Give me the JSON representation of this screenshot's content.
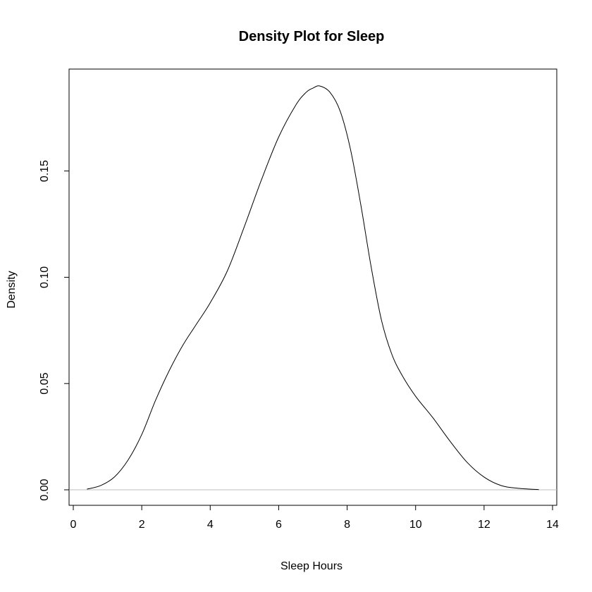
{
  "chart_data": {
    "type": "line",
    "title": "Density Plot for Sleep",
    "xlabel": "Sleep Hours",
    "ylabel": "Density",
    "xlim": [
      0,
      14
    ],
    "ylim": [
      0,
      0.19
    ],
    "x_ticks": [
      0,
      2,
      4,
      6,
      8,
      10,
      12,
      14
    ],
    "x_tick_labels": [
      "0",
      "2",
      "4",
      "6",
      "8",
      "10",
      "12",
      "14"
    ],
    "y_ticks": [
      0,
      0.05,
      0.1,
      0.15
    ],
    "y_tick_labels": [
      "0.00",
      "0.05",
      "0.10",
      "0.15"
    ],
    "baseline": 0,
    "baseline_color": "#bebebe",
    "line_color": "#000000",
    "grid": false,
    "series": [
      {
        "x": [
          0.4,
          0.8,
          1.2,
          1.6,
          2.0,
          2.4,
          2.8,
          3.2,
          3.6,
          4.0,
          4.5,
          5.0,
          5.5,
          6.0,
          6.5,
          6.8,
          7.0,
          7.2,
          7.5,
          7.8,
          8.1,
          8.4,
          8.7,
          9.0,
          9.3,
          9.6,
          10.0,
          10.5,
          11.0,
          11.5,
          12.0,
          12.5,
          13.0,
          13.6
        ],
        "y": [
          0.0003,
          0.002,
          0.006,
          0.014,
          0.026,
          0.042,
          0.056,
          0.068,
          0.078,
          0.088,
          0.103,
          0.124,
          0.146,
          0.166,
          0.181,
          0.187,
          0.189,
          0.19,
          0.187,
          0.178,
          0.16,
          0.134,
          0.105,
          0.08,
          0.064,
          0.054,
          0.044,
          0.034,
          0.023,
          0.013,
          0.006,
          0.002,
          0.0007,
          0.0001
        ]
      }
    ]
  }
}
